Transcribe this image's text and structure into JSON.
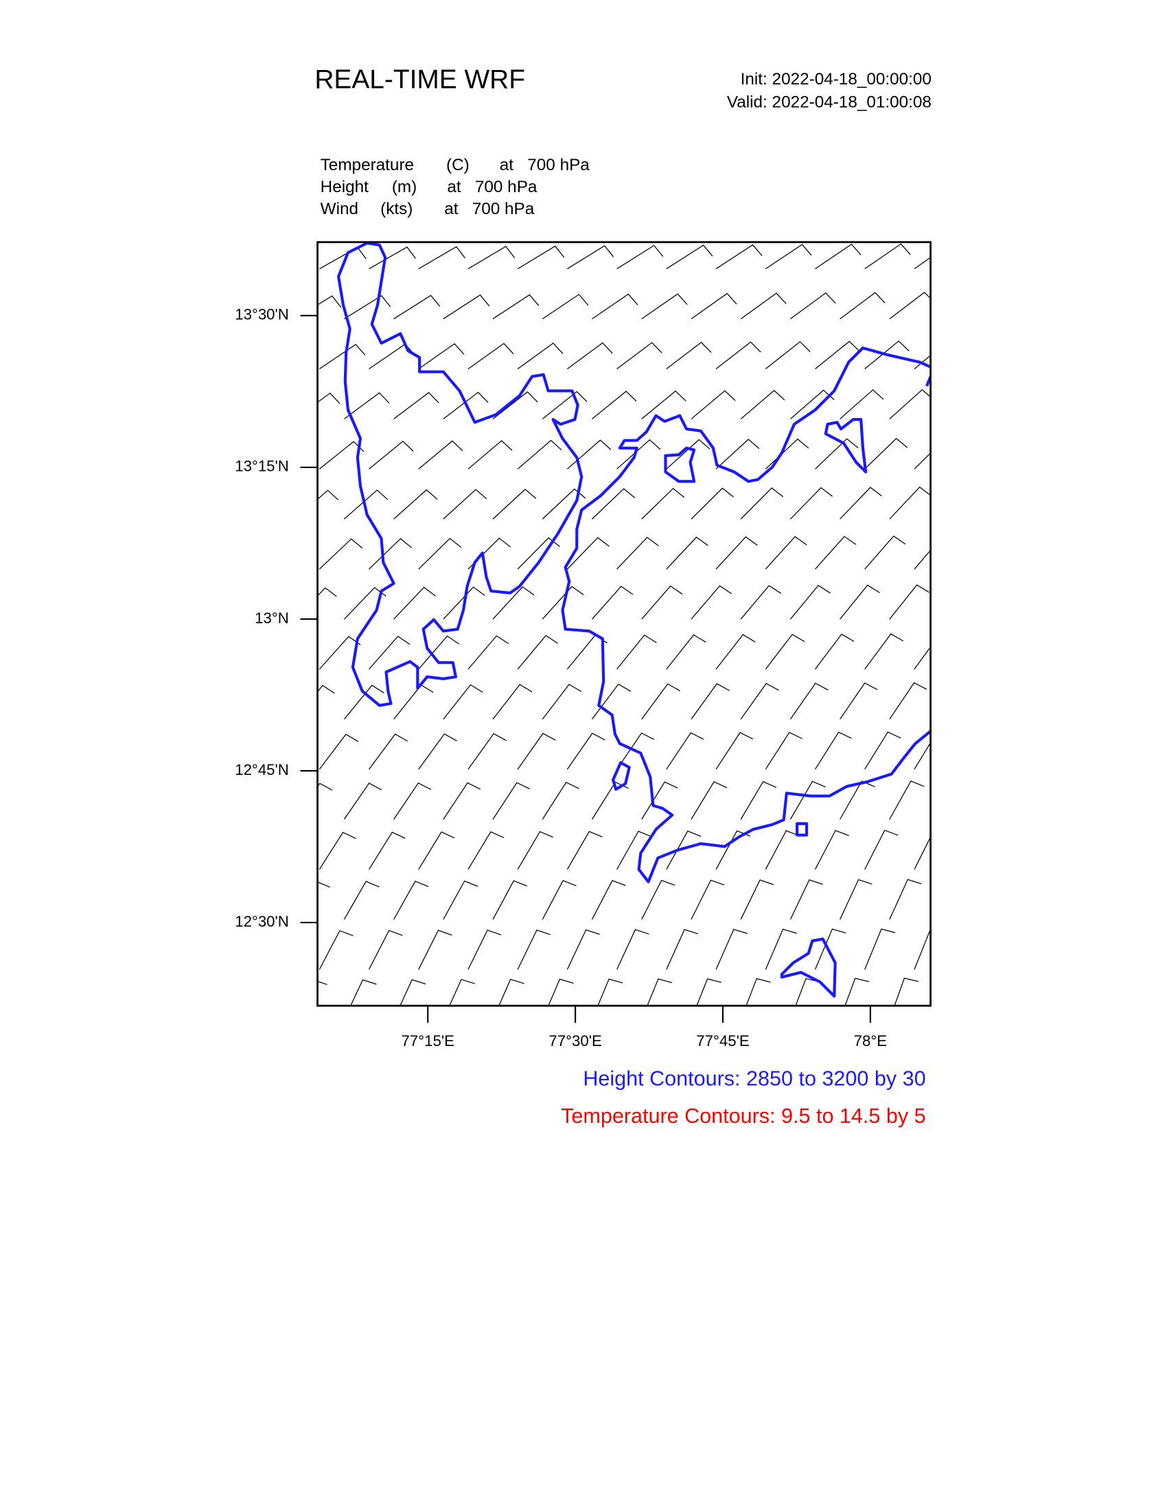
{
  "header": {
    "title": "REAL-TIME WRF",
    "init": "Init: 2022-04-18_00:00:00",
    "valid": "Valid: 2022-04-18_01:00:08"
  },
  "fields": [
    {
      "name": "Temperature",
      "unit": "(C)",
      "level": "at   700 hPa"
    },
    {
      "name": "Height",
      "unit": "(m)",
      "level": "at   700 hPa"
    },
    {
      "name": "Wind",
      "unit": "(kts)",
      "level": "at   700 hPa"
    }
  ],
  "chart_data": {
    "type": "map",
    "xlim": [
      77.063,
      78.102
    ],
    "ylim": [
      12.363,
      13.621
    ],
    "xticks": [
      {
        "value": 77.25,
        "label": "77°15'E"
      },
      {
        "value": 77.5,
        "label": "77°30'E"
      },
      {
        "value": 77.75,
        "label": "77°45'E"
      },
      {
        "value": 78,
        "label": "78°E"
      }
    ],
    "yticks": [
      {
        "value": 12.5,
        "label": "12°30'N"
      },
      {
        "value": 12.75,
        "label": "12°45'N"
      },
      {
        "value": 13,
        "label": "13°N"
      },
      {
        "value": 13.25,
        "label": "13°15'N"
      },
      {
        "value": 13.5,
        "label": "13°30'N"
      }
    ],
    "annotations": [
      {
        "text": "Height Contours: 2850 to 3200 by 30",
        "color": "#1a1aff"
      },
      {
        "text": "Temperature Contours: 9.5 to 14.5 by 5",
        "color": "#ff0000"
      }
    ]
  }
}
